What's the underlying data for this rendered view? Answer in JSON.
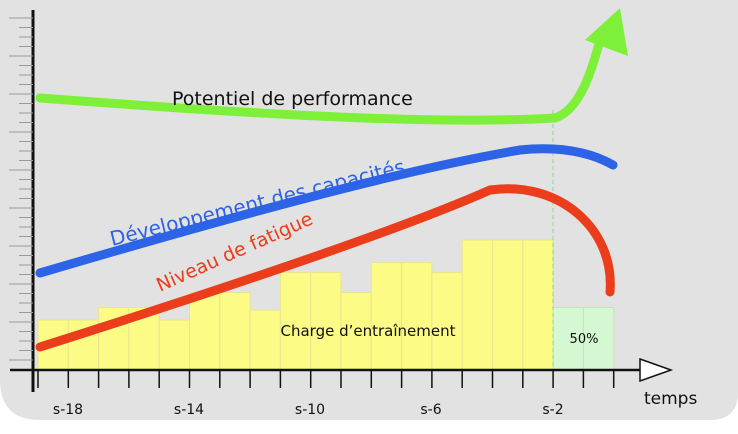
{
  "colors": {
    "panel": "#e2e2e2",
    "bar_fill": "#fbfb86",
    "bar_stroke": "#e6e690",
    "last_bar_fill": "#d5f7d2",
    "performance": "#7ef03a",
    "capacites": "#2d63e6",
    "fatigue": "#eb3d1b",
    "axis": "#111111"
  },
  "axis": {
    "x_title": "temps",
    "week_labels": [
      "s-18",
      "s-14",
      "s-10",
      "s-6",
      "s-2"
    ]
  },
  "curves": {
    "performance_label": "Potentiel de performance",
    "capacites_label": "Développement des capacités",
    "fatigue_label": "Niveau de fatigue"
  },
  "bars": {
    "label": "Charge d’entraînement",
    "last_label": "50%",
    "heights_relative": [
      1,
      1,
      1.25,
      1.25,
      1,
      1.55,
      1.55,
      1.2,
      1.95,
      1.95,
      1.55,
      2.15,
      2.15,
      1.95,
      2.6,
      2.6,
      2.6,
      1.25,
      1.25
    ]
  }
}
